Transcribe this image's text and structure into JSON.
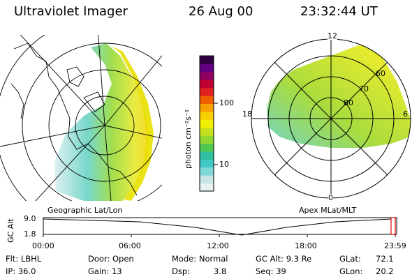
{
  "header": {
    "title": "Ultraviolet Imager",
    "date": "26 Aug 00",
    "time": "23:32:44 UT"
  },
  "left_panel": {
    "caption": "Geographic Lat/Lon"
  },
  "right_panel": {
    "caption": "Apex MLat/MLT",
    "mlt_labels": {
      "top": "12",
      "left": "18",
      "right": "6",
      "bottom": "0"
    },
    "lat_labels": [
      "60",
      "70",
      "80"
    ]
  },
  "colorbar": {
    "unit_label": "photon cm⁻²s⁻¹",
    "tick_labels": [
      "100",
      "10"
    ],
    "colors": [
      "#e6f0f0",
      "#c8e6e6",
      "#80d8d8",
      "#40c8c8",
      "#30c0a0",
      "#50c850",
      "#90d830",
      "#c8e020",
      "#f0f000",
      "#f8d000",
      "#f8a000",
      "#f06000",
      "#e02020",
      "#c00030",
      "#900060",
      "#600080",
      "#300040"
    ]
  },
  "altitude_plot": {
    "ylabel": "GC Alt",
    "y_ticks": [
      "9.0",
      "1.8"
    ],
    "x_ticks": [
      "00:00",
      "06:00",
      "12:00",
      "18:00",
      "23:59"
    ]
  },
  "info": {
    "filter": "Flt: LBHL",
    "ip": "IP: 36.0",
    "door": "Door: Open",
    "gain": "Gain: 13",
    "mode": "Mode: Normal",
    "dsp_label": "Dsp:",
    "dsp_value": "3.8",
    "gc_alt": "GC Alt: 9.3 Re",
    "seq": "Seq: 39",
    "glat_label": "GLat:",
    "glat_value": "72.1",
    "glon_label": "GLon:",
    "glon_value": "20.2"
  }
}
